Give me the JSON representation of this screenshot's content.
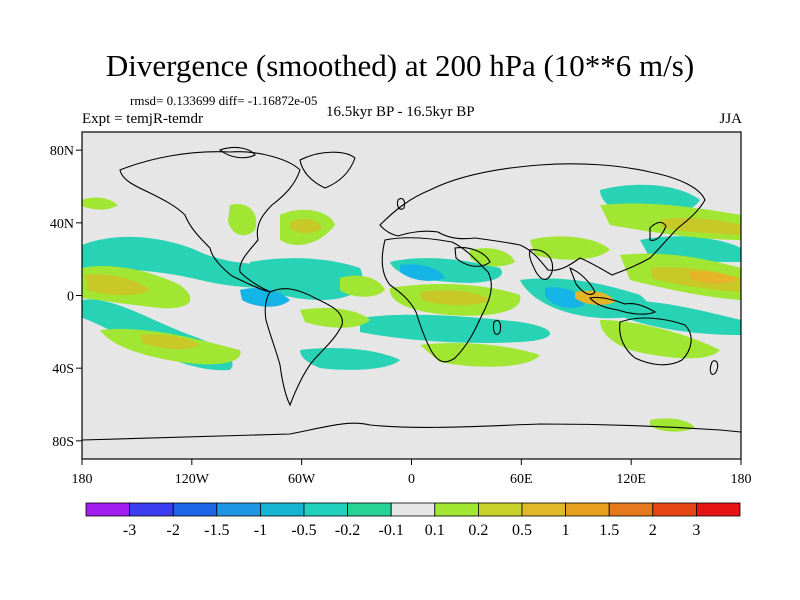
{
  "title": "Divergence (smoothed) at 200 hPa (10**6 m/s)",
  "stats": "rmsd= 0.133699 diff= -1.16872e-05",
  "experiment": "Expt = temjR-temdr",
  "period": "16.5kyr BP - 16.5kyr BP",
  "season": "JJA",
  "lat_labels": [
    "80N",
    "40N",
    "0",
    "40S",
    "80S"
  ],
  "lon_labels": [
    "180",
    "120W",
    "60W",
    "0",
    "60E",
    "120E",
    "180"
  ],
  "colorbar": {
    "labels": [
      "-3",
      "-2",
      "-1.5",
      "-1",
      "-0.5",
      "-0.2",
      "-0.1",
      "0.1",
      "0.2",
      "0.5",
      "1",
      "1.5",
      "2",
      "3"
    ],
    "colors": [
      "#a01ef0",
      "#3c3cf0",
      "#1e64e6",
      "#1e96e6",
      "#14b4d2",
      "#20d2be",
      "#28d296",
      "#e6e6e6",
      "#a0e632",
      "#c8d228",
      "#e1b928",
      "#e6a01e",
      "#e6781e",
      "#e64614",
      "#e61414"
    ]
  },
  "land_color": "#e6e6e6",
  "coast_color": "#000000"
}
